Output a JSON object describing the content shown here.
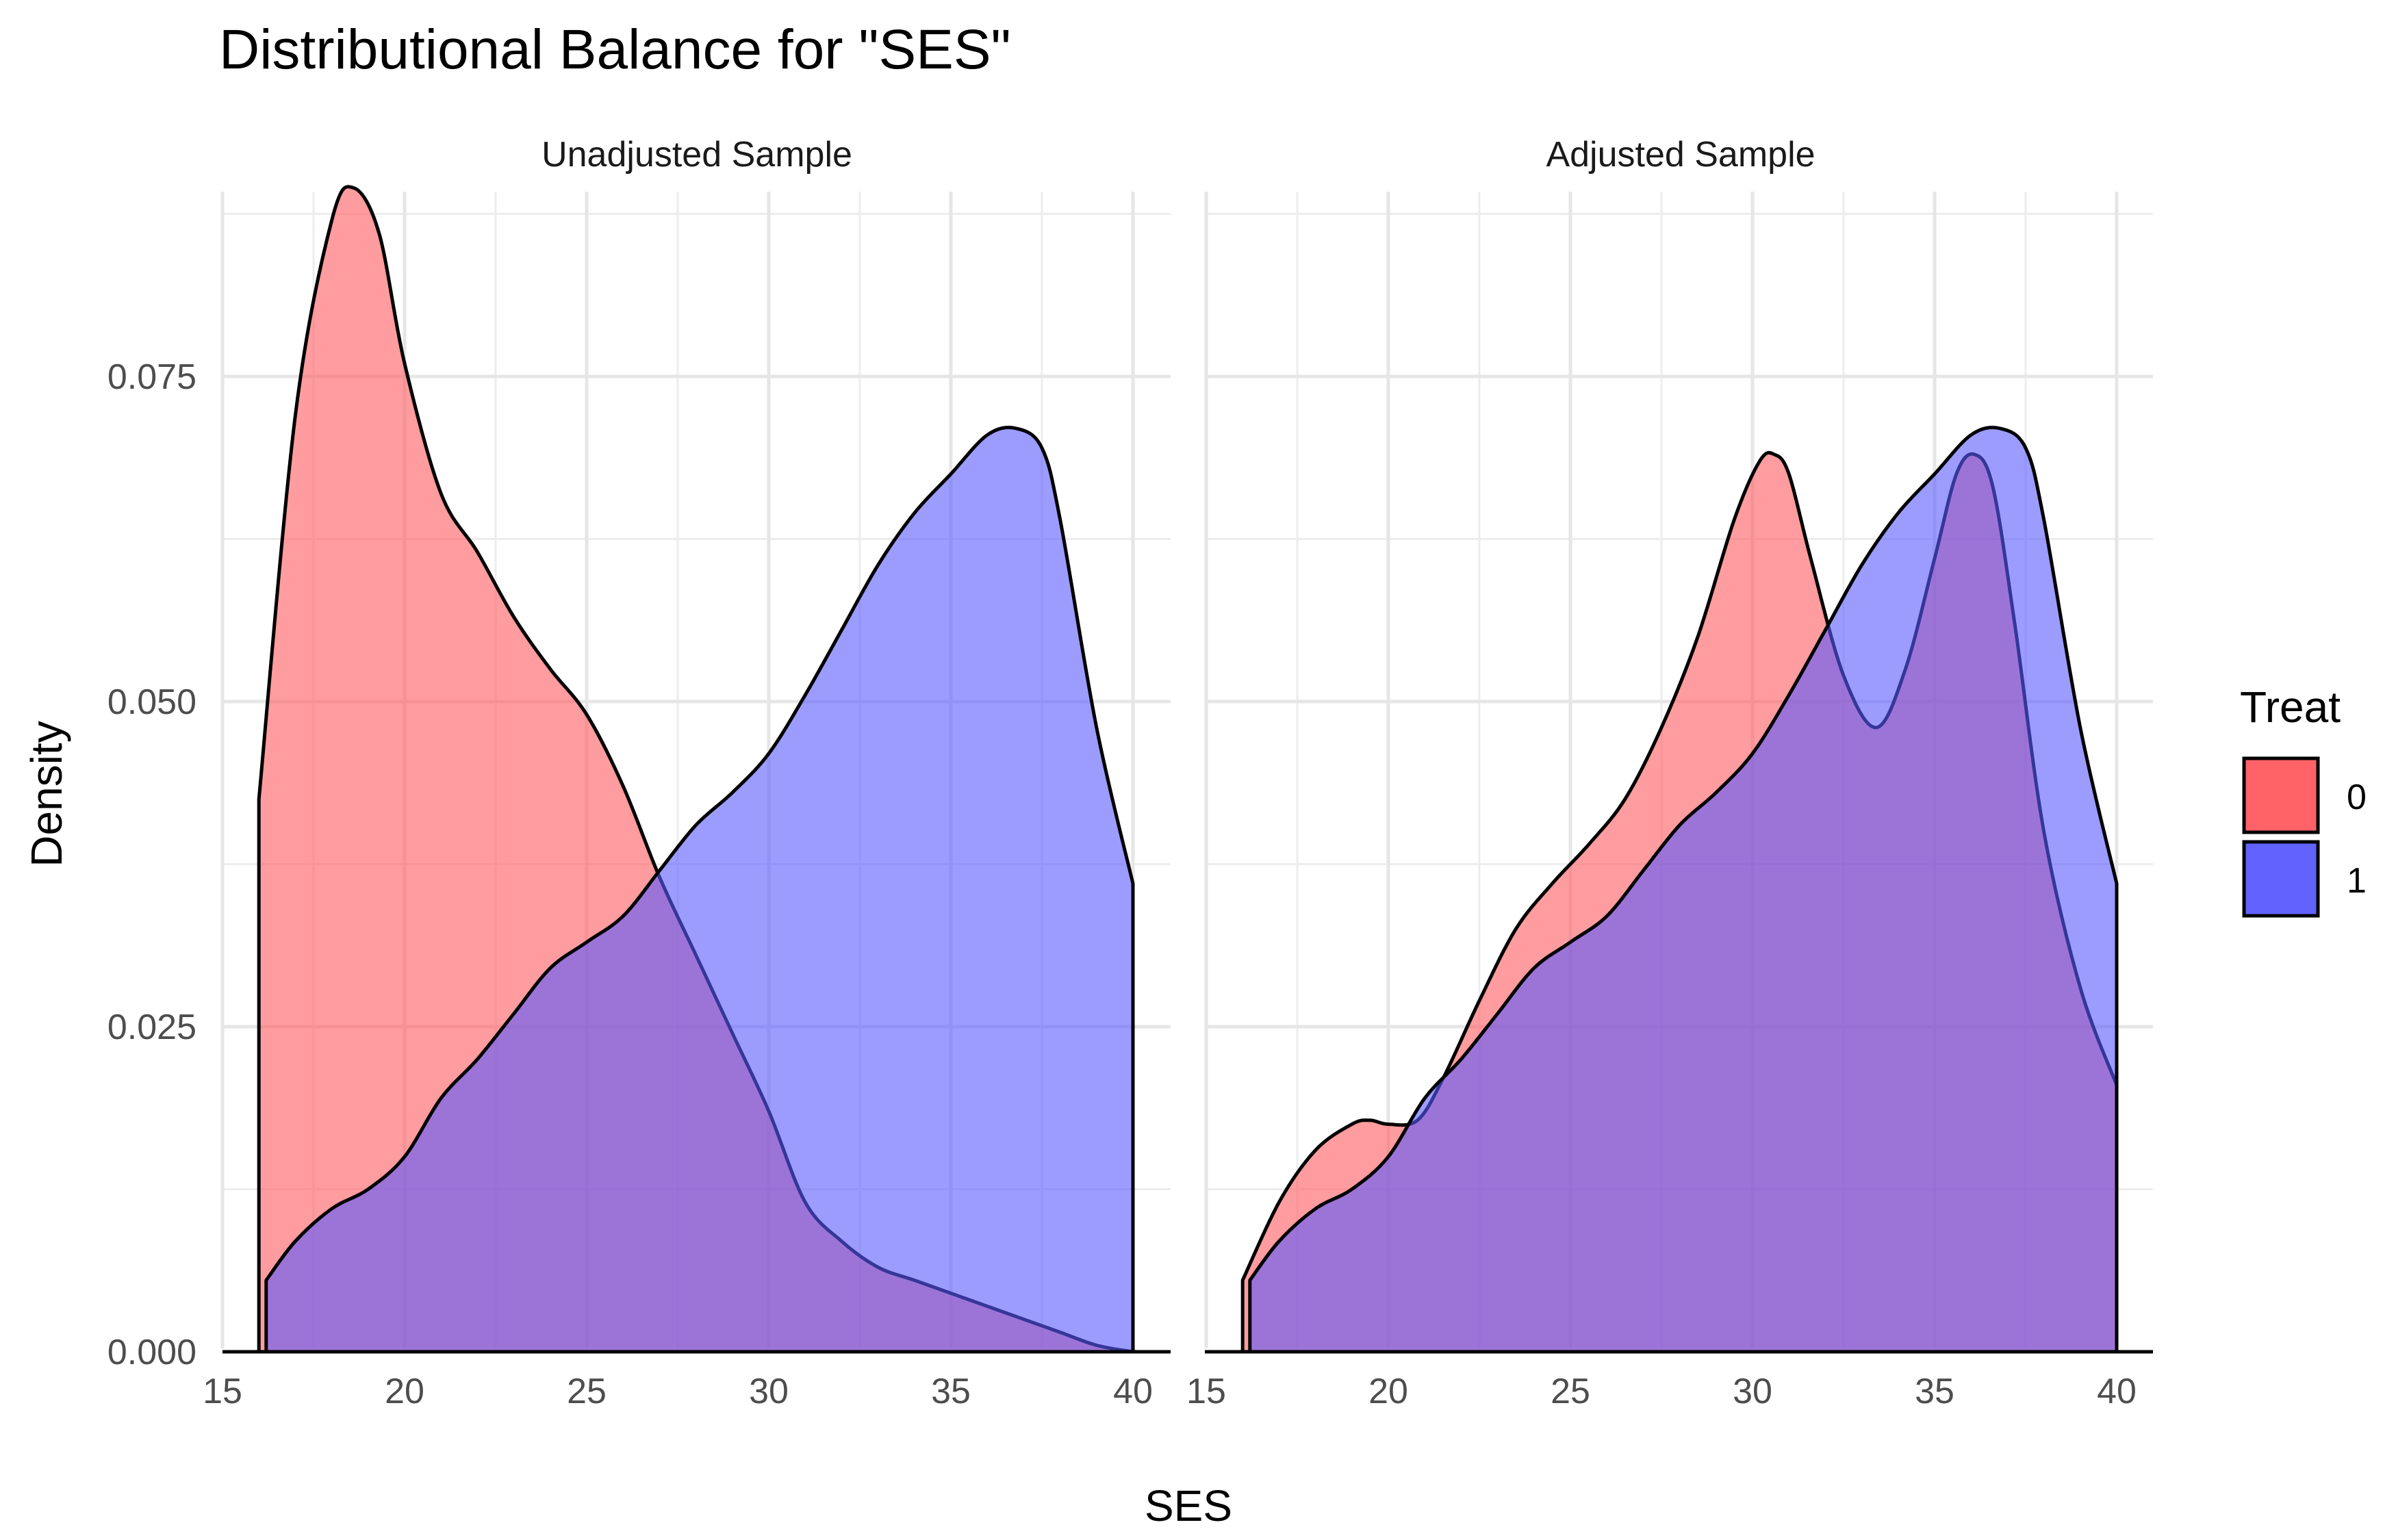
{
  "chart_data": {
    "type": "area",
    "title": "Distributional Balance for \"SES\"",
    "xlabel": "SES",
    "ylabel": "Density",
    "xlim": [
      15,
      40
    ],
    "ylim": [
      0,
      0.09
    ],
    "x_ticks": [
      "15",
      "20",
      "25",
      "30",
      "35",
      "40"
    ],
    "y_ticks": [
      "0.000",
      "0.025",
      "0.050",
      "0.075"
    ],
    "grid": true,
    "legend": {
      "title": "Treat",
      "position": "right",
      "entries": [
        {
          "label": "0",
          "color": "#ff5a5f"
        },
        {
          "label": "1",
          "color": "#5a5aff"
        }
      ]
    },
    "fill_alpha": 0.6,
    "panels": [
      {
        "name": "Unadjusted Sample",
        "series": [
          {
            "name": "0",
            "color": "#ff5a5f",
            "x": [
              16.0,
              17.0,
              18.0,
              18.6,
              19.3,
              20.0,
              21.0,
              22.0,
              23.0,
              24.0,
              25.0,
              26.0,
              27.0,
              28.0,
              29.0,
              30.0,
              31.0,
              32.0,
              33.0,
              34.0,
              35.0,
              36.0,
              37.0,
              38.0,
              39.0,
              40.0
            ],
            "y": [
              0.0425,
              0.072,
              0.087,
              0.0895,
              0.086,
              0.076,
              0.066,
              0.0615,
              0.0565,
              0.0525,
              0.049,
              0.0435,
              0.0365,
              0.0305,
              0.0245,
              0.0185,
              0.0115,
              0.0085,
              0.0065,
              0.0055,
              0.0045,
              0.0035,
              0.0025,
              0.0015,
              0.0005,
              0.0
            ]
          },
          {
            "name": "1",
            "color": "#5a5aff",
            "x": [
              16.2,
              17.0,
              18.0,
              19.0,
              20.0,
              21.0,
              22.0,
              23.0,
              24.0,
              25.0,
              26.0,
              27.0,
              28.0,
              29.0,
              30.0,
              31.0,
              32.0,
              33.0,
              34.0,
              35.0,
              36.0,
              36.8,
              37.5,
              38.0,
              39.0,
              40.0
            ],
            "y": [
              0.0055,
              0.0085,
              0.011,
              0.0125,
              0.015,
              0.0195,
              0.0225,
              0.026,
              0.0295,
              0.0315,
              0.0335,
              0.037,
              0.0405,
              0.043,
              0.046,
              0.0505,
              0.0555,
              0.0605,
              0.0645,
              0.0675,
              0.0705,
              0.071,
              0.0695,
              0.064,
              0.048,
              0.036
            ]
          }
        ]
      },
      {
        "name": "Adjusted Sample",
        "series": [
          {
            "name": "0",
            "color": "#ff5a5f",
            "x": [
              16.0,
              17.0,
              18.0,
              19.0,
              19.5,
              20.0,
              20.8,
              21.5,
              22.5,
              23.5,
              24.5,
              25.5,
              26.5,
              27.5,
              28.5,
              29.5,
              30.2,
              30.6,
              31.0,
              31.6,
              32.5,
              33.4,
              34.2,
              35.0,
              35.6,
              36.1,
              36.6,
              37.2,
              38.0,
              39.0,
              40.0
            ],
            "y": [
              0.0055,
              0.0115,
              0.0155,
              0.0175,
              0.0178,
              0.0175,
              0.0178,
              0.021,
              0.027,
              0.0325,
              0.036,
              0.039,
              0.0425,
              0.048,
              0.055,
              0.064,
              0.0685,
              0.069,
              0.0675,
              0.061,
              0.052,
              0.048,
              0.0525,
              0.061,
              0.0675,
              0.069,
              0.0665,
              0.056,
              0.04,
              0.028,
              0.0205
            ]
          },
          {
            "name": "1",
            "color": "#5a5aff",
            "x": [
              16.2,
              17.0,
              18.0,
              19.0,
              20.0,
              21.0,
              22.0,
              23.0,
              24.0,
              25.0,
              26.0,
              27.0,
              28.0,
              29.0,
              30.0,
              31.0,
              32.0,
              33.0,
              34.0,
              35.0,
              36.0,
              36.8,
              37.5,
              38.0,
              39.0,
              40.0
            ],
            "y": [
              0.0055,
              0.0085,
              0.011,
              0.0125,
              0.015,
              0.0195,
              0.0225,
              0.026,
              0.0295,
              0.0315,
              0.0335,
              0.037,
              0.0405,
              0.043,
              0.046,
              0.0505,
              0.0555,
              0.0605,
              0.0645,
              0.0675,
              0.0705,
              0.071,
              0.0695,
              0.064,
              0.048,
              0.036
            ]
          }
        ]
      }
    ]
  }
}
